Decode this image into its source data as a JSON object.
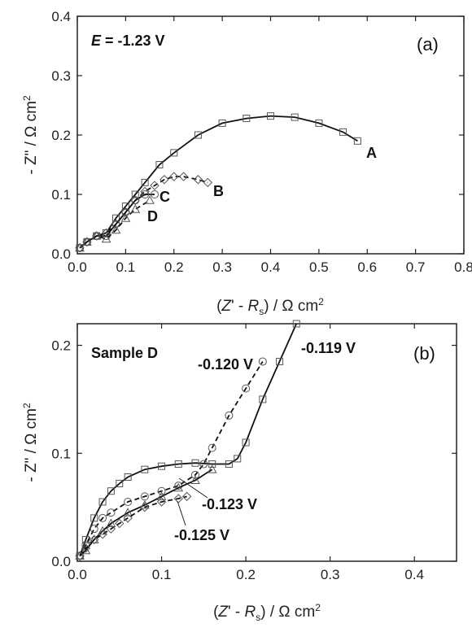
{
  "chart_data": [
    {
      "type": "scatter",
      "panel_label": "(a)",
      "condition": "E = -1.23 V",
      "condition_var": "E",
      "condition_rest": " = -1.23 V",
      "xlim": [
        0,
        0.8
      ],
      "ylim": [
        0,
        0.4
      ],
      "xticks": [
        "0.0",
        "0.1",
        "0.2",
        "0.3",
        "0.4",
        "0.5",
        "0.6",
        "0.7",
        "0.8"
      ],
      "yticks": [
        "0.0",
        "0.1",
        "0.2",
        "0.3",
        "0.4"
      ],
      "ylabel": "- Z\" / Ω cm²",
      "ylabel_parts": {
        "pre": "- Z\" / Ω cm",
        "sup": "2"
      },
      "xlabel": "(Z' - Rs) / Ω cm²",
      "xlabel_parts": {
        "open": "(",
        "z": "Z",
        "mid": "' - ",
        "r": "R",
        "sub": "s",
        "close": ") / Ω cm",
        "sup": "2"
      },
      "series": [
        {
          "name": "A",
          "marker": "square",
          "fit": "solid",
          "x": [
            0.005,
            0.02,
            0.04,
            0.06,
            0.08,
            0.1,
            0.12,
            0.14,
            0.17,
            0.2,
            0.25,
            0.3,
            0.35,
            0.4,
            0.45,
            0.5,
            0.55,
            0.58
          ],
          "y": [
            0.01,
            0.02,
            0.03,
            0.035,
            0.06,
            0.08,
            0.1,
            0.12,
            0.15,
            0.17,
            0.2,
            0.22,
            0.228,
            0.232,
            0.23,
            0.22,
            0.205,
            0.19
          ]
        },
        {
          "name": "B",
          "marker": "diamond",
          "fit": "dashed",
          "x": [
            0.005,
            0.02,
            0.04,
            0.06,
            0.08,
            0.1,
            0.12,
            0.14,
            0.16,
            0.18,
            0.2,
            0.22,
            0.25,
            0.27
          ],
          "y": [
            0.01,
            0.02,
            0.03,
            0.035,
            0.05,
            0.07,
            0.09,
            0.105,
            0.115,
            0.125,
            0.13,
            0.13,
            0.125,
            0.12
          ]
        },
        {
          "name": "C",
          "marker": "circle",
          "fit": "solid",
          "x": [
            0.005,
            0.02,
            0.04,
            0.06,
            0.08,
            0.1,
            0.12,
            0.14,
            0.16
          ],
          "y": [
            0.01,
            0.02,
            0.03,
            0.03,
            0.05,
            0.07,
            0.09,
            0.1,
            0.1
          ]
        },
        {
          "name": "D",
          "marker": "triangle",
          "fit": "dashed",
          "x": [
            0.005,
            0.02,
            0.04,
            0.06,
            0.08,
            0.1,
            0.12,
            0.15
          ],
          "y": [
            0.01,
            0.02,
            0.03,
            0.025,
            0.04,
            0.06,
            0.075,
            0.09
          ]
        }
      ]
    },
    {
      "type": "scatter",
      "panel_label": "(b)",
      "sample": "Sample D",
      "xlim": [
        0,
        0.45
      ],
      "ylim": [
        0,
        0.22
      ],
      "xticks": [
        "0.0",
        "0.1",
        "0.2",
        "0.3",
        "0.4"
      ],
      "yticks": [
        "0.0",
        "0.1",
        "0.2"
      ],
      "ylabel": "- Z\" / Ω cm²",
      "ylabel_parts": {
        "pre": "- Z\" / Ω cm",
        "sup": "2"
      },
      "xlabel": "(Z' - Rs) / Ω cm²",
      "xlabel_parts": {
        "open": "(",
        "z": "Z",
        "mid": "' - ",
        "r": "R",
        "sub": "s",
        "close": ") / Ω cm",
        "sup": "2"
      },
      "series": [
        {
          "name": "-0.119 V",
          "marker": "square",
          "fit": "solid",
          "x": [
            0.003,
            0.01,
            0.02,
            0.03,
            0.04,
            0.05,
            0.06,
            0.08,
            0.1,
            0.12,
            0.14,
            0.16,
            0.18,
            0.19,
            0.2,
            0.22,
            0.24,
            0.26
          ],
          "y": [
            0.005,
            0.02,
            0.04,
            0.055,
            0.065,
            0.072,
            0.078,
            0.085,
            0.088,
            0.09,
            0.091,
            0.09,
            0.09,
            0.095,
            0.11,
            0.15,
            0.185,
            0.22
          ]
        },
        {
          "name": "-0.120 V",
          "marker": "circle",
          "fit": "dashed",
          "x": [
            0.003,
            0.01,
            0.02,
            0.03,
            0.04,
            0.06,
            0.08,
            0.1,
            0.12,
            0.14,
            0.15,
            0.16,
            0.18,
            0.2,
            0.22
          ],
          "y": [
            0.005,
            0.015,
            0.03,
            0.04,
            0.045,
            0.055,
            0.06,
            0.065,
            0.07,
            0.08,
            0.09,
            0.105,
            0.135,
            0.16,
            0.185
          ]
        },
        {
          "name": "-0.123 V",
          "marker": "triangle",
          "fit": "solid",
          "x": [
            0.003,
            0.01,
            0.02,
            0.03,
            0.04,
            0.06,
            0.08,
            0.1,
            0.12,
            0.14,
            0.16
          ],
          "y": [
            0.005,
            0.01,
            0.02,
            0.028,
            0.035,
            0.045,
            0.052,
            0.06,
            0.068,
            0.075,
            0.085
          ]
        },
        {
          "name": "-0.125 V",
          "marker": "diamond",
          "fit": "dashed",
          "x": [
            0.003,
            0.01,
            0.02,
            0.03,
            0.04,
            0.05,
            0.06,
            0.08,
            0.1,
            0.12,
            0.13
          ],
          "y": [
            0.005,
            0.012,
            0.02,
            0.025,
            0.03,
            0.035,
            0.04,
            0.05,
            0.055,
            0.058,
            0.06
          ]
        }
      ]
    }
  ]
}
